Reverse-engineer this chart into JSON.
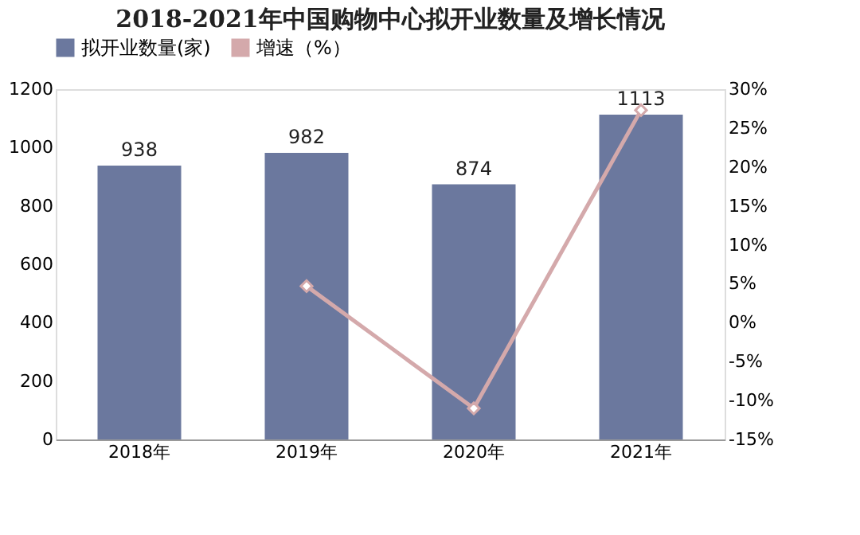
{
  "chart_data": {
    "type": "bar",
    "title": "2018-2021年中国购物中心拟开业数量及增长情况",
    "categories": [
      "2018年",
      "2019年",
      "2020年",
      "2021年"
    ],
    "series": [
      {
        "name": "拟开业数量(家)",
        "color": "#6b789e",
        "values": [
          938,
          982,
          874,
          1113
        ],
        "value_labels": [
          "938",
          "982",
          "874",
          "1113"
        ]
      },
      {
        "name": "增速（%）",
        "type": "line",
        "axis": "y2",
        "color": "#d4a9ab",
        "values": [
          null,
          4.7,
          -11.0,
          27.3
        ]
      }
    ],
    "ylim": [
      0,
      1200
    ],
    "yticks": [
      0,
      200,
      400,
      600,
      800,
      1000,
      1200
    ],
    "y2lim": [
      -15,
      30
    ],
    "y2ticks": [
      {
        "value": -15,
        "label": "-15%"
      },
      {
        "value": -10,
        "label": "-10%"
      },
      {
        "value": -5,
        "label": "-5%"
      },
      {
        "value": 0,
        "label": "0%"
      },
      {
        "value": 5,
        "label": "5%"
      },
      {
        "value": 10,
        "label": "10%"
      },
      {
        "value": 15,
        "label": "15%"
      },
      {
        "value": 20,
        "label": "20%"
      },
      {
        "value": 25,
        "label": "25%"
      },
      {
        "value": 30,
        "label": "30%"
      }
    ],
    "marker": "diamond",
    "legend": "top",
    "grid": false
  }
}
